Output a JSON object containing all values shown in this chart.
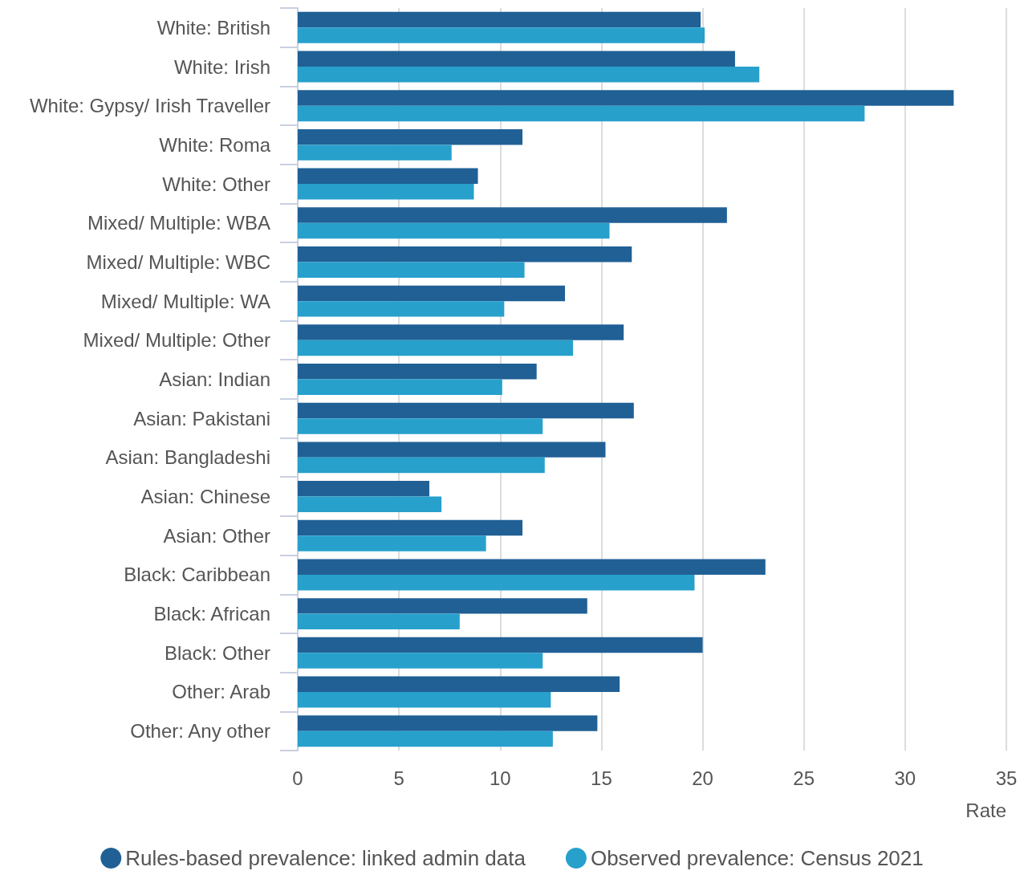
{
  "chart_data": {
    "type": "bar",
    "orientation": "horizontal",
    "xlabel": "Rate",
    "categories": [
      "White: British",
      "White: Irish",
      "White: Gypsy/ Irish Traveller",
      "White: Roma",
      "White: Other",
      "Mixed/ Multiple: WBA",
      "Mixed/ Multiple: WBC",
      "Mixed/ Multiple: WA",
      "Mixed/ Multiple: Other",
      "Asian: Indian",
      "Asian: Pakistani",
      "Asian: Bangladeshi",
      "Asian: Chinese",
      "Asian: Other",
      "Black: Caribbean",
      "Black: African",
      "Black: Other",
      "Other: Arab",
      "Other: Any other"
    ],
    "series": [
      {
        "name": "Rules-based prevalence: linked admin data",
        "color": "#206095",
        "values": [
          19.9,
          21.6,
          32.4,
          11.1,
          8.9,
          21.2,
          16.5,
          13.2,
          16.1,
          11.8,
          16.6,
          15.2,
          6.5,
          11.1,
          23.1,
          14.3,
          20.0,
          15.9,
          14.8
        ]
      },
      {
        "name": "Observed prevalence: Census 2021",
        "color": "#27a0cc",
        "values": [
          20.1,
          22.8,
          28.0,
          7.6,
          8.7,
          15.4,
          11.2,
          10.2,
          13.6,
          10.1,
          12.1,
          12.2,
          7.1,
          9.3,
          19.6,
          8.0,
          12.1,
          12.5,
          12.6
        ]
      }
    ],
    "xlim": [
      0,
      35
    ],
    "xticks": [
      0,
      5,
      10,
      15,
      20,
      25,
      30,
      35
    ],
    "grid": "x",
    "legend": "bottom"
  }
}
